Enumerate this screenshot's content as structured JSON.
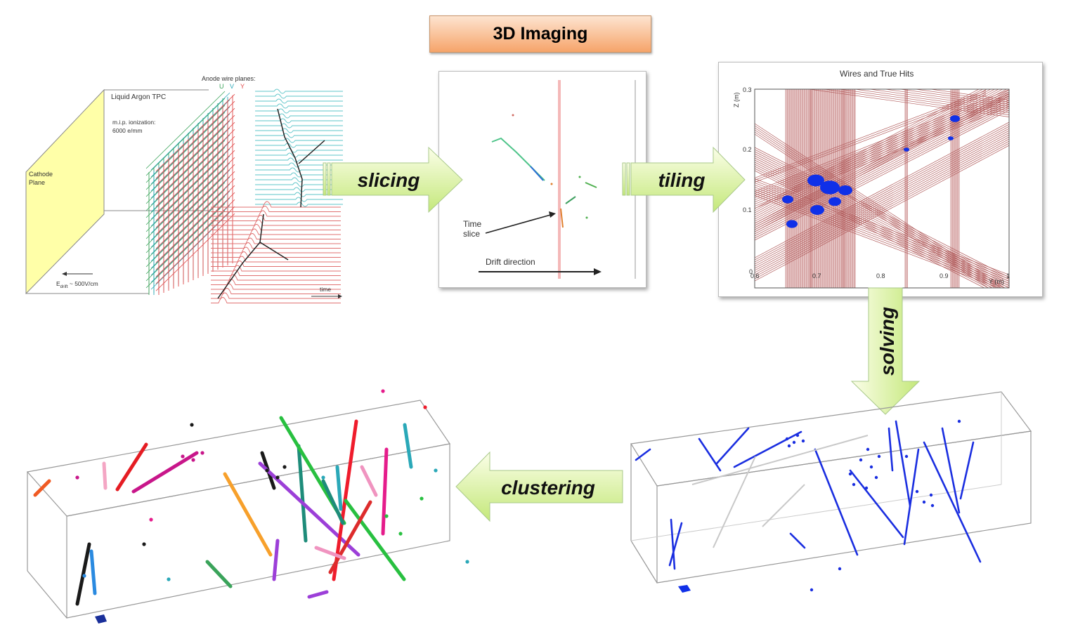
{
  "title": "3D Imaging",
  "tpc": {
    "anode_label": "Anode wire planes:",
    "planes": [
      "U",
      "V",
      "Y"
    ],
    "plane_colors": [
      "#3aa35a",
      "#2aa7b8",
      "#e04848"
    ],
    "tpc_label": "Liquid Argon TPC",
    "mip_label": "m.i.p. ionization:",
    "mip_value": "6000 e/mm",
    "cathode_line1": "Cathode",
    "cathode_line2": "Plane",
    "edrift_E": "E",
    "edrift_sub": "drift",
    "edrift_rest": " ~ 500V/cm",
    "time_label": "time"
  },
  "slice": {
    "time_line1": "Time",
    "time_line2": "slice",
    "drift_label": "Drift direction"
  },
  "tiling_plot": {
    "title": "Wires and True Hits",
    "ylabel": "Z (m)",
    "xlabel": "Y (m)",
    "yticks": [
      "0.3",
      "0.2",
      "0.1",
      "0"
    ],
    "xticks": [
      "0.6",
      "0.7",
      "0.8",
      "0.9",
      "1"
    ]
  },
  "steps": {
    "slicing": "slicing",
    "tiling": "tiling",
    "solving": "solving",
    "clustering": "clustering"
  },
  "colors": {
    "arrow_fill_top": "#fbfee8",
    "arrow_fill_bottom": "#c4e87a",
    "wire_band": "#b05a5a",
    "blob": "#1030e8",
    "solved_track": "#1a2ee0",
    "title_box": "#f6a46a"
  }
}
